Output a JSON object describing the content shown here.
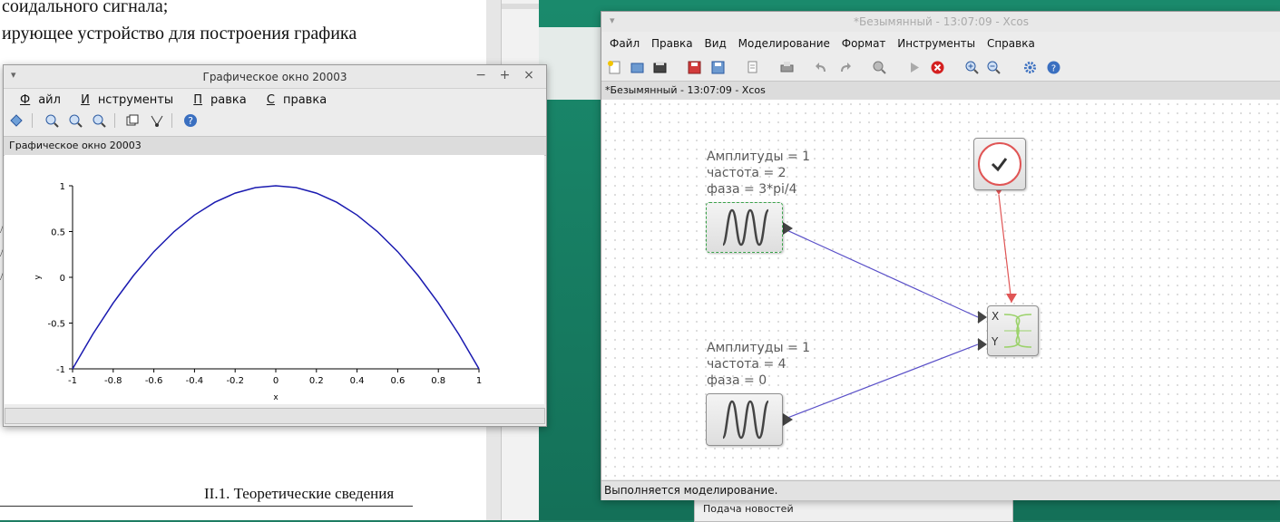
{
  "document": {
    "lines": [
      "соидального сигнала;",
      "ирующее устройство для построения графика"
    ],
    "footer": "II.1. Теоретические сведения"
  },
  "news_panel": {
    "label": "Подача новостей"
  },
  "graphic_window": {
    "title": "Графическое окно 20003",
    "path_label": "Графическое окно 20003",
    "menu": [
      {
        "label": "Файл",
        "underline": "Ф",
        "rest": "айл"
      },
      {
        "label": "Инструменты",
        "underline": "И",
        "rest": "нструменты"
      },
      {
        "label": "Правка",
        "underline": "П",
        "rest": "равка"
      },
      {
        "label": "Справка",
        "underline": "С",
        "rest": "правка"
      }
    ],
    "toolbar_icons": [
      "rotate-icon",
      "zoom-in-icon",
      "zoom-fit-icon",
      "zoom-area-icon",
      "copy-window-icon",
      "datatip-icon",
      "help-icon"
    ],
    "window_controls": [
      "−",
      "+",
      "×"
    ]
  },
  "chart_data": {
    "type": "line",
    "xlabel": "x",
    "ylabel": "y",
    "xlim": [
      -1,
      1
    ],
    "ylim": [
      -1,
      1
    ],
    "x_ticks": [
      "-1",
      "-0.8",
      "-0.6",
      "-0.4",
      "-0.2",
      "0",
      "0.2",
      "0.4",
      "0.6",
      "0.8",
      "1"
    ],
    "y_ticks": [
      "1",
      "0.5",
      "0",
      "-0.5",
      "-1"
    ],
    "series": [
      {
        "color": "#1a1ab0",
        "x": [
          -1,
          -0.9,
          -0.8,
          -0.7,
          -0.6,
          -0.5,
          -0.4,
          -0.3,
          -0.2,
          -0.1,
          0,
          0.1,
          0.2,
          0.3,
          0.4,
          0.5,
          0.6,
          0.7,
          0.8,
          0.9,
          1
        ],
        "y": [
          -1,
          -0.62,
          -0.28,
          0.02,
          0.28,
          0.5,
          0.68,
          0.82,
          0.92,
          0.98,
          1,
          0.98,
          0.92,
          0.82,
          0.68,
          0.5,
          0.28,
          0.02,
          -0.28,
          -0.62,
          -1
        ]
      }
    ]
  },
  "xcos": {
    "title": "*Безымянный - 13:07:09 - Xcos",
    "tab_label": "*Безымянный - 13:07:09 - Xcos",
    "menu": [
      "Файл",
      "Правка",
      "Вид",
      "Моделирование",
      "Формат",
      "Инструменты",
      "Справка"
    ],
    "status": "Выполняется моделирование.",
    "toolbar_icons": [
      "new-diagram-icon",
      "open-icon",
      "open-in-scilab-icon",
      "save-icon",
      "save-as-icon",
      "print-setup-icon",
      "print-icon",
      "undo-icon",
      "redo-icon",
      "fit-diagram-icon",
      "start-icon",
      "stop-icon",
      "zoom-in-icon",
      "zoom-out-icon",
      "setup-icon",
      "help-icon"
    ],
    "block1_params": [
      "Амплитуды = 1",
      "частота = 2",
      "фаза = 3*pi/4"
    ],
    "block2_params": [
      "Амплитуды = 1",
      "частота = 4",
      "фаза = 0"
    ],
    "scope_ports": [
      "X",
      "Y"
    ],
    "link_colors": {
      "data": "#5a50c8",
      "event": "#e05555"
    }
  }
}
